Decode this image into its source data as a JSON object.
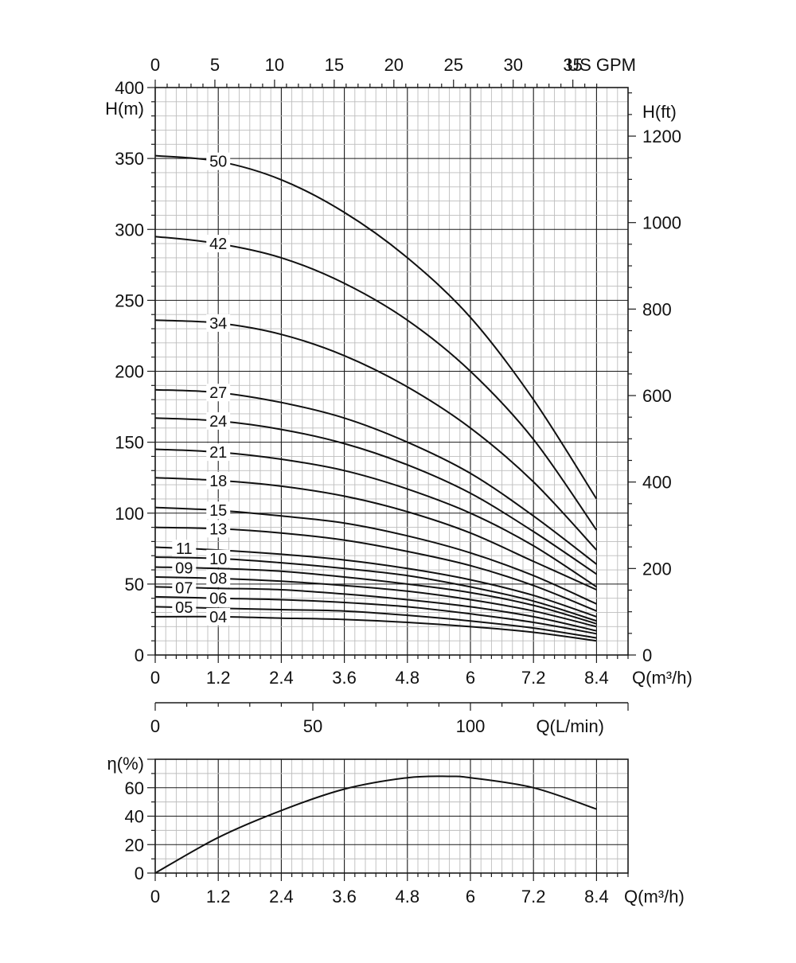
{
  "chart_data": [
    {
      "type": "line",
      "title": "",
      "x_unit_label": "Q(m³/h)",
      "ylabel": "H(m)",
      "ylabel_secondary": "H(ft)",
      "top_axis_label": "US GPM",
      "bottom_axis2_label": "Q(L/min)",
      "xlim": [
        0,
        9
      ],
      "ylim": [
        0,
        400
      ],
      "x_ticks": [
        0,
        1.2,
        2.4,
        3.6,
        4.8,
        6,
        7.2,
        8.4
      ],
      "x_tick_labels": [
        "0",
        "1.2",
        "2.4",
        "3.6",
        "4.8",
        "6",
        "7.2",
        "8.4"
      ],
      "y_ticks": [
        0,
        50,
        100,
        150,
        200,
        250,
        300,
        350,
        400
      ],
      "y_tick_labels": [
        "0",
        "50",
        "100",
        "150",
        "200",
        "250",
        "300",
        "350",
        "400"
      ],
      "ft_ticks": [
        0,
        200,
        400,
        600,
        800,
        1000,
        1200
      ],
      "ft_tick_labels": [
        "0",
        "200",
        "400",
        "600",
        "800",
        "1000",
        "1200"
      ],
      "gpm_ticks": [
        0,
        5,
        10,
        15,
        20,
        25,
        30,
        35
      ],
      "gpm_tick_labels": [
        "0",
        "5",
        "10",
        "15",
        "20",
        "25",
        "30",
        "35"
      ],
      "lpm_ticks": [
        0,
        50,
        100
      ],
      "lpm_tick_labels": [
        "0",
        "50",
        "100"
      ],
      "grid": true,
      "x": [
        0,
        1.2,
        2.4,
        3.6,
        4.8,
        6,
        7.2,
        8.4
      ],
      "series": [
        {
          "name": "50",
          "values": [
            352,
            348,
            335,
            312,
            280,
            238,
            180,
            110
          ]
        },
        {
          "name": "42",
          "values": [
            295,
            290,
            280,
            262,
            236,
            200,
            152,
            88
          ]
        },
        {
          "name": "34",
          "values": [
            236,
            234,
            226,
            211,
            189,
            160,
            122,
            74
          ]
        },
        {
          "name": "27",
          "values": [
            187,
            185,
            178,
            167,
            150,
            128,
            98,
            64
          ]
        },
        {
          "name": "24",
          "values": [
            167,
            165,
            159,
            149,
            134,
            114,
            87,
            57
          ]
        },
        {
          "name": "21",
          "values": [
            145,
            143,
            138,
            130,
            117,
            100,
            77,
            48
          ]
        },
        {
          "name": "18",
          "values": [
            125,
            123,
            119,
            112,
            101,
            86,
            66,
            46
          ]
        },
        {
          "name": "15",
          "values": [
            104,
            102,
            98,
            93,
            84,
            72,
            56,
            36
          ]
        },
        {
          "name": "13",
          "values": [
            90,
            89,
            86,
            81,
            73,
            63,
            49,
            31
          ]
        },
        {
          "name": "11",
          "values": [
            76,
            74,
            71,
            67,
            61,
            53,
            42,
            27
          ]
        },
        {
          "name": "10",
          "values": [
            69,
            68,
            65,
            61,
            56,
            48,
            38,
            24
          ]
        },
        {
          "name": "09",
          "values": [
            62,
            61,
            59,
            55,
            50,
            44,
            35,
            22
          ]
        },
        {
          "name": "08",
          "values": [
            55,
            54,
            52,
            49,
            45,
            39,
            31,
            20
          ]
        },
        {
          "name": "07",
          "values": [
            48,
            47,
            46,
            43,
            39,
            34,
            27,
            17
          ]
        },
        {
          "name": "06",
          "values": [
            41,
            40,
            39,
            37,
            34,
            29,
            23,
            15
          ]
        },
        {
          "name": "05",
          "values": [
            34,
            33,
            32,
            31,
            28,
            24,
            19,
            12
          ]
        },
        {
          "name": "04",
          "values": [
            27,
            27,
            26,
            25,
            23,
            20,
            16,
            10
          ]
        }
      ]
    },
    {
      "type": "line",
      "title": "",
      "x_unit_label": "Q(m³/h)",
      "ylabel": "η(%)",
      "xlim": [
        0,
        9
      ],
      "ylim": [
        0,
        80
      ],
      "x_ticks": [
        0,
        1.2,
        2.4,
        3.6,
        4.8,
        6,
        7.2,
        8.4
      ],
      "x_tick_labels": [
        "0",
        "1.2",
        "2.4",
        "3.6",
        "4.8",
        "6",
        "7.2",
        "8.4"
      ],
      "y_ticks": [
        0,
        20,
        40,
        60
      ],
      "y_tick_labels": [
        "0",
        "20",
        "40",
        "60"
      ],
      "grid": true,
      "series": [
        {
          "name": "efficiency",
          "x": [
            0,
            1.2,
            2.4,
            3.6,
            4.8,
            5.6,
            6,
            7.2,
            8.4
          ],
          "values": [
            0,
            25,
            44,
            59,
            67,
            68,
            67,
            60,
            45
          ]
        }
      ]
    }
  ]
}
